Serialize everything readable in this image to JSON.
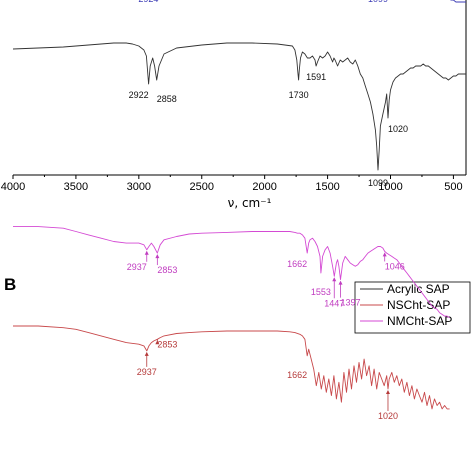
{
  "chart_data": [
    {
      "panel": "A",
      "show_panel_label": false,
      "type": "line",
      "xlabel": "ν, cm⁻¹",
      "xlim": [
        4000,
        400
      ],
      "x_reversed": true,
      "xticks": [
        4000,
        3500,
        3000,
        2500,
        2000,
        1500,
        1000,
        500
      ],
      "grid": false,
      "series": [
        {
          "name": "",
          "color": "#3b3bb5",
          "x": [
            4000,
            3700,
            3500,
            3300,
            3200,
            3100,
            3000,
            2960,
            2940,
            2924,
            2905,
            2880,
            2860,
            2840,
            2800,
            2700,
            2500,
            2300,
            2100,
            1900,
            1800,
            1760,
            1740,
            1720,
            1700,
            1680,
            1660,
            1640,
            1620,
            1600,
            1580,
            1560,
            1546,
            1530,
            1500,
            1480,
            1450,
            1420,
            1400,
            1380,
            1360,
            1340,
            1320,
            1300,
            1280,
            1260,
            1240,
            1220,
            1200,
            1180,
            1160,
            1140,
            1120,
            1110,
            1099,
            1090,
            1080,
            1060,
            1040,
            1030,
            1020,
            1010,
            1000,
            980,
            960,
            940,
            920,
            900,
            880,
            860,
            840,
            820,
            800,
            780,
            760,
            740,
            720,
            700,
            680,
            660,
            640,
            620,
            600,
            580,
            560,
            540,
            520,
            500,
            480,
            460,
            440,
            420,
            400
          ],
          "y": [
            0.68,
            0.675,
            0.67,
            0.66,
            0.63,
            0.59,
            0.57,
            0.55,
            0.56,
            0.52,
            0.58,
            0.6,
            0.62,
            0.64,
            0.66,
            0.69,
            0.71,
            0.72,
            0.73,
            0.73,
            0.72,
            0.71,
            0.72,
            0.71,
            0.7,
            0.7,
            0.69,
            0.68,
            0.68,
            0.67,
            0.65,
            0.62,
            0.58,
            0.62,
            0.64,
            0.62,
            0.61,
            0.6,
            0.6,
            0.62,
            0.61,
            0.62,
            0.63,
            0.64,
            0.63,
            0.64,
            0.63,
            0.62,
            0.61,
            0.6,
            0.6,
            0.59,
            0.57,
            0.56,
            0.52,
            0.58,
            0.62,
            0.59,
            0.6,
            0.58,
            0.55,
            0.57,
            0.58,
            0.6,
            0.61,
            0.63,
            0.62,
            0.63,
            0.62,
            0.63,
            0.62,
            0.63,
            0.61,
            0.62,
            0.6,
            0.61,
            0.6,
            0.58,
            0.57,
            0.56,
            0.54,
            0.52,
            0.5,
            0.49,
            0.47,
            0.46,
            0.45,
            0.45,
            0.44,
            0.44,
            0.44,
            0.44,
            0.44
          ]
        },
        {
          "name": "",
          "color": "#333333",
          "x": [
            4000,
            3800,
            3600,
            3500,
            3400,
            3300,
            3200,
            3100,
            3050,
            3000,
            2960,
            2940,
            2922,
            2910,
            2890,
            2875,
            2858,
            2840,
            2800,
            2700,
            2500,
            2300,
            2100,
            1900,
            1780,
            1760,
            1745,
            1735,
            1730,
            1725,
            1715,
            1700,
            1680,
            1660,
            1640,
            1620,
            1600,
            1591,
            1580,
            1560,
            1540,
            1520,
            1500,
            1480,
            1460,
            1450,
            1440,
            1420,
            1400,
            1380,
            1360,
            1340,
            1320,
            1300,
            1280,
            1260,
            1240,
            1220,
            1200,
            1180,
            1160,
            1140,
            1120,
            1110,
            1099,
            1090,
            1080,
            1060,
            1040,
            1030,
            1020,
            1010,
            1000,
            980,
            960,
            940,
            920,
            900,
            880,
            860,
            840,
            820,
            800,
            780,
            760,
            740,
            720,
            700,
            680,
            660,
            640,
            620,
            600,
            580,
            560,
            540,
            520,
            500,
            480,
            460,
            440,
            420,
            400
          ],
          "y": [
            0.205,
            0.21,
            0.215,
            0.22,
            0.225,
            0.23,
            0.235,
            0.235,
            0.23,
            0.22,
            0.2,
            0.17,
            0.03,
            0.12,
            0.16,
            0.12,
            0.05,
            0.12,
            0.18,
            0.21,
            0.225,
            0.235,
            0.235,
            0.23,
            0.22,
            0.2,
            0.15,
            0.08,
            0.05,
            0.1,
            0.16,
            0.19,
            0.18,
            0.16,
            0.16,
            0.17,
            0.15,
            0.12,
            0.14,
            0.17,
            0.16,
            0.17,
            0.19,
            0.17,
            0.14,
            0.16,
            0.15,
            0.12,
            0.15,
            0.14,
            0.15,
            0.16,
            0.14,
            0.13,
            0.15,
            0.12,
            0.08,
            0.06,
            0.02,
            -0.02,
            -0.06,
            -0.12,
            -0.2,
            -0.28,
            -0.4,
            -0.3,
            -0.18,
            -0.12,
            -0.06,
            -0.02,
            -0.14,
            -0.05,
            0.0,
            0.04,
            0.06,
            0.07,
            0.08,
            0.08,
            0.09,
            0.1,
            0.11,
            0.11,
            0.12,
            0.12,
            0.12,
            0.13,
            0.12,
            0.12,
            0.11,
            0.1,
            0.09,
            0.08,
            0.07,
            0.06,
            0.06,
            0.05,
            0.06,
            0.07,
            0.07,
            0.08,
            0.08,
            0.08,
            0.08
          ]
        }
      ],
      "annotations": [
        {
          "text": "2924",
          "x": 2924,
          "y": 0.52,
          "color": "#3b3bb5",
          "anchor": "middle",
          "dy": 16
        },
        {
          "text": "1546",
          "x": 1546,
          "y": 0.58,
          "color": "#3b3bb5",
          "anchor": "middle",
          "dy": 16
        },
        {
          "text": "1099",
          "x": 1099,
          "y": 0.52,
          "color": "#3b3bb5",
          "anchor": "middle",
          "dy": 16
        },
        {
          "text": "1020",
          "x": 1020,
          "y": 0.55,
          "color": "#3b3bb5",
          "anchor": "start",
          "dy": 16
        },
        {
          "text": "2922",
          "x": 2922,
          "y": 0.03,
          "color": "#111111",
          "anchor": "end",
          "dy": 14
        },
        {
          "text": "2858",
          "x": 2858,
          "y": 0.05,
          "color": "#111111",
          "anchor": "start",
          "dy": 22
        },
        {
          "text": "1730",
          "x": 1730,
          "y": 0.05,
          "color": "#111111",
          "anchor": "middle",
          "dy": 18
        },
        {
          "text": "1591",
          "x": 1591,
          "y": 0.12,
          "color": "#111111",
          "anchor": "middle",
          "dy": 14
        },
        {
          "text": "1099",
          "x": 1099,
          "y": -0.4,
          "color": "#111111",
          "anchor": "middle",
          "dy": 16
        },
        {
          "text": "1020",
          "x": 1020,
          "y": -0.14,
          "color": "#111111",
          "anchor": "start",
          "dy": 14
        }
      ]
    },
    {
      "panel": "B",
      "show_panel_label": true,
      "type": "line",
      "xlim": [
        4000,
        400
      ],
      "x_reversed": true,
      "grid": false,
      "legend": {
        "position": "top-right",
        "entries": [
          {
            "label": "Acrylic SAP",
            "color": "#333333"
          },
          {
            "label": "NSCht-SAP",
            "color": "#c8494b"
          },
          {
            "label": "NMCht-SAP",
            "color": "#d44ad4"
          }
        ]
      },
      "series": [
        {
          "name": "NMCht-SAP",
          "color": "#d44ad4",
          "x": [
            4000,
            3800,
            3600,
            3500,
            3400,
            3300,
            3200,
            3100,
            3050,
            3000,
            2960,
            2937,
            2920,
            2900,
            2880,
            2853,
            2830,
            2800,
            2700,
            2600,
            2500,
            2300,
            2100,
            1900,
            1800,
            1760,
            1740,
            1720,
            1700,
            1680,
            1662,
            1650,
            1640,
            1620,
            1600,
            1580,
            1560,
            1553,
            1540,
            1520,
            1500,
            1480,
            1460,
            1447,
            1430,
            1420,
            1410,
            1397,
            1380,
            1360,
            1340,
            1320,
            1300,
            1280,
            1260,
            1240,
            1220,
            1200,
            1180,
            1160,
            1140,
            1120,
            1100,
            1080,
            1060,
            1046,
            1030,
            1010,
            990,
            970,
            950,
            930,
            910,
            890,
            870,
            850,
            830,
            810,
            790,
            770,
            750,
            730,
            710,
            690,
            670,
            650,
            630,
            610,
            590,
            570,
            550,
            530
          ],
          "y": [
            0.9,
            0.9,
            0.89,
            0.87,
            0.85,
            0.83,
            0.81,
            0.8,
            0.8,
            0.8,
            0.79,
            0.76,
            0.78,
            0.8,
            0.78,
            0.74,
            0.79,
            0.82,
            0.84,
            0.855,
            0.86,
            0.865,
            0.87,
            0.87,
            0.87,
            0.865,
            0.86,
            0.86,
            0.85,
            0.83,
            0.74,
            0.8,
            0.82,
            0.83,
            0.81,
            0.78,
            0.72,
            0.62,
            0.72,
            0.76,
            0.78,
            0.74,
            0.66,
            0.6,
            0.68,
            0.7,
            0.66,
            0.58,
            0.68,
            0.72,
            0.7,
            0.68,
            0.67,
            0.66,
            0.67,
            0.69,
            0.7,
            0.72,
            0.74,
            0.75,
            0.76,
            0.77,
            0.78,
            0.78,
            0.77,
            0.75,
            0.74,
            0.73,
            0.72,
            0.71,
            0.7,
            0.68,
            0.66,
            0.64,
            0.62,
            0.6,
            0.58,
            0.56,
            0.54,
            0.52,
            0.5,
            0.48,
            0.46,
            0.44,
            0.42,
            0.41,
            0.4,
            0.38,
            0.37,
            0.36,
            0.36,
            0.35
          ]
        },
        {
          "name": "NSCht-SAP",
          "color": "#c8494b",
          "x": [
            4000,
            3800,
            3600,
            3500,
            3400,
            3300,
            3200,
            3100,
            3000,
            2960,
            2937,
            2920,
            2900,
            2880,
            2853,
            2830,
            2800,
            2700,
            2600,
            2500,
            2300,
            2100,
            1900,
            1800,
            1760,
            1720,
            1700,
            1680,
            1662,
            1650,
            1630,
            1610,
            1590,
            1570,
            1550,
            1530,
            1510,
            1490,
            1470,
            1450,
            1430,
            1410,
            1390,
            1370,
            1350,
            1330,
            1310,
            1290,
            1270,
            1250,
            1230,
            1210,
            1190,
            1170,
            1150,
            1130,
            1110,
            1090,
            1070,
            1050,
            1030,
            1020,
            1010,
            990,
            970,
            950,
            930,
            910,
            890,
            870,
            850,
            830,
            810,
            790,
            770,
            750,
            730,
            710,
            690,
            670,
            650,
            630,
            610,
            590,
            570,
            550,
            530
          ],
          "y": [
            0.3,
            0.3,
            0.29,
            0.28,
            0.26,
            0.24,
            0.22,
            0.2,
            0.19,
            0.18,
            0.15,
            0.18,
            0.2,
            0.21,
            0.22,
            0.23,
            0.24,
            0.255,
            0.26,
            0.265,
            0.27,
            0.27,
            0.27,
            0.265,
            0.26,
            0.25,
            0.24,
            0.22,
            0.12,
            0.16,
            0.1,
            0.04,
            -0.06,
            0.02,
            -0.08,
            0.0,
            -0.1,
            -0.02,
            -0.12,
            0.0,
            -0.14,
            -0.04,
            -0.16,
            0.02,
            -0.1,
            0.04,
            -0.08,
            0.06,
            -0.04,
            0.08,
            -0.02,
            0.1,
            0.0,
            0.06,
            -0.06,
            0.04,
            -0.08,
            0.02,
            -0.02,
            -0.06,
            0.0,
            -0.08,
            -0.02,
            0.02,
            -0.04,
            0.0,
            -0.06,
            -0.02,
            -0.1,
            -0.04,
            -0.12,
            -0.06,
            -0.14,
            -0.08,
            -0.12,
            -0.16,
            -0.1,
            -0.18,
            -0.12,
            -0.2,
            -0.14,
            -0.18,
            -0.16,
            -0.2,
            -0.18,
            -0.2,
            -0.2
          ]
        }
      ],
      "annotations": [
        {
          "text": "2937",
          "x": 2937,
          "y": 0.76,
          "color": "#c03cc0",
          "anchor": "end",
          "dy": 20,
          "arrow": true
        },
        {
          "text": "2853",
          "x": 2853,
          "y": 0.74,
          "color": "#c03cc0",
          "anchor": "start",
          "dy": 20,
          "arrow": true
        },
        {
          "text": "1662",
          "x": 1662,
          "y": 0.74,
          "color": "#c03cc0",
          "anchor": "end",
          "dy": 14
        },
        {
          "text": "1553",
          "x": 1553,
          "y": 0.62,
          "color": "#c03cc0",
          "anchor": "middle",
          "dy": 22
        },
        {
          "text": "1447",
          "x": 1447,
          "y": 0.6,
          "color": "#c03cc0",
          "anchor": "middle",
          "dy": 30,
          "arrow": true
        },
        {
          "text": "1397",
          "x": 1397,
          "y": 0.58,
          "color": "#c03cc0",
          "anchor": "start",
          "dy": 26,
          "arrow": true
        },
        {
          "text": "1046",
          "x": 1046,
          "y": 0.75,
          "color": "#c03cc0",
          "anchor": "start",
          "dy": 18,
          "arrow": true
        },
        {
          "text": "2937",
          "x": 2937,
          "y": 0.15,
          "color": "#b53a3a",
          "anchor": "middle",
          "dy": 24,
          "arrow": true
        },
        {
          "text": "2853",
          "x": 2853,
          "y": 0.22,
          "color": "#b53a3a",
          "anchor": "start",
          "dy": 8,
          "arrow": true
        },
        {
          "text": "1662",
          "x": 1662,
          "y": 0.12,
          "color": "#b53a3a",
          "anchor": "end",
          "dy": 22
        },
        {
          "text": "1020",
          "x": 1020,
          "y": -0.08,
          "color": "#b53a3a",
          "anchor": "middle",
          "dy": 30,
          "arrow": true
        }
      ]
    }
  ]
}
